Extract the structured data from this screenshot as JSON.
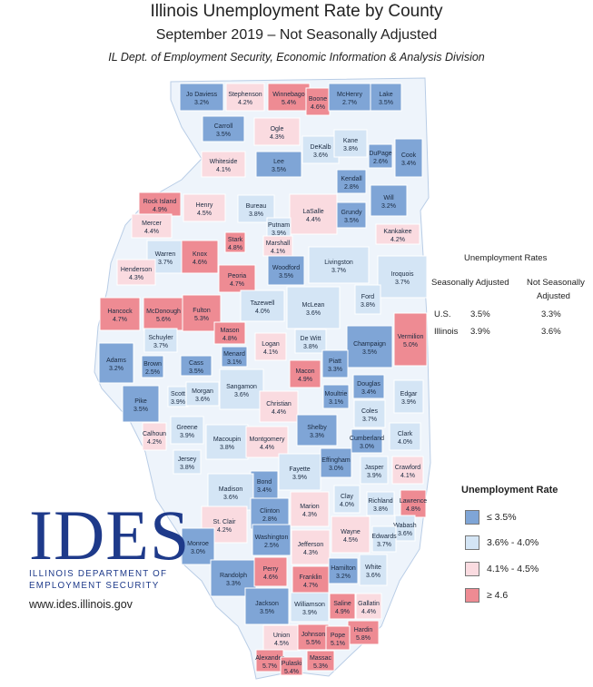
{
  "header": {
    "title": "Illinois Unemployment Rate by County",
    "subtitle": "September 2019 – Not Seasonally Adjusted",
    "source": "IL Dept. of Employment Security, Economic Information & Analysis Division"
  },
  "rates_table": {
    "title": "Unemployment Rates",
    "col_sa": "Seasonally Adjusted",
    "col_nsa_1": "Not Seasonally",
    "col_nsa_2": "Adjusted",
    "rows": [
      {
        "label": "U.S.",
        "sa": "3.5%",
        "nsa": "3.3%"
      },
      {
        "label": "Illinois",
        "sa": "3.9%",
        "nsa": "3.6%"
      }
    ]
  },
  "legend": {
    "title": "Unemployment Rate",
    "items": [
      {
        "label": "≤ 3.5%",
        "color": "#7fa5d6"
      },
      {
        "label": "3.6% - 4.0%",
        "color": "#d4e5f5"
      },
      {
        "label": "4.1% - 4.5%",
        "color": "#fadbe0"
      },
      {
        "label": "≥ 4.6",
        "color": "#ee8b93"
      }
    ]
  },
  "logo": {
    "word": "IDES",
    "org_line1": "ILLINOIS DEPARTMENT OF",
    "org_line2": "EMPLOYMENT SECURITY",
    "url": "www.ides.illinois.gov"
  },
  "counties": [
    {
      "name": "Jo Daviess",
      "rate": "3.2%"
    },
    {
      "name": "Stephenson",
      "rate": "4.2%"
    },
    {
      "name": "Winnebago",
      "rate": "5.4%"
    },
    {
      "name": "Boone",
      "rate": "4.6%"
    },
    {
      "name": "McHenry",
      "rate": "2.7%"
    },
    {
      "name": "Lake",
      "rate": "3.5%"
    },
    {
      "name": "Carroll",
      "rate": "3.5%"
    },
    {
      "name": "Ogle",
      "rate": "4.3%"
    },
    {
      "name": "DeKalb",
      "rate": "3.6%"
    },
    {
      "name": "Kane",
      "rate": "3.8%"
    },
    {
      "name": "DuPage",
      "rate": "2.6%"
    },
    {
      "name": "Cook",
      "rate": "3.4%"
    },
    {
      "name": "Whiteside",
      "rate": "4.1%"
    },
    {
      "name": "Lee",
      "rate": "3.5%"
    },
    {
      "name": "Kendall",
      "rate": "2.8%"
    },
    {
      "name": "Will",
      "rate": "3.2%"
    },
    {
      "name": "Rock Island",
      "rate": "4.9%"
    },
    {
      "name": "Henry",
      "rate": "4.5%"
    },
    {
      "name": "Bureau",
      "rate": "3.8%"
    },
    {
      "name": "LaSalle",
      "rate": "4.4%"
    },
    {
      "name": "Grundy",
      "rate": "3.5%"
    },
    {
      "name": "Putnam",
      "rate": "3.9%"
    },
    {
      "name": "Kankakee",
      "rate": "4.2%"
    },
    {
      "name": "Mercer",
      "rate": "4.4%"
    },
    {
      "name": "Stark",
      "rate": "4.8%"
    },
    {
      "name": "Marshall",
      "rate": "4.1%"
    },
    {
      "name": "Warren",
      "rate": "3.7%"
    },
    {
      "name": "Knox",
      "rate": "4.6%"
    },
    {
      "name": "Livingston",
      "rate": "3.7%"
    },
    {
      "name": "Henderson",
      "rate": "4.3%"
    },
    {
      "name": "Peoria",
      "rate": "4.7%"
    },
    {
      "name": "Woodford",
      "rate": "3.5%"
    },
    {
      "name": "Iroquois",
      "rate": "3.7%"
    },
    {
      "name": "Hancock",
      "rate": "4.7%"
    },
    {
      "name": "McDonough",
      "rate": "5.6%"
    },
    {
      "name": "Fulton",
      "rate": "5.3%"
    },
    {
      "name": "Tazewell",
      "rate": "4.0%"
    },
    {
      "name": "McLean",
      "rate": "3.6%"
    },
    {
      "name": "Ford",
      "rate": "3.8%"
    },
    {
      "name": "Vermilion",
      "rate": "5.0%"
    },
    {
      "name": "Schuyler",
      "rate": "3.7%"
    },
    {
      "name": "Mason",
      "rate": "4.8%"
    },
    {
      "name": "Logan",
      "rate": "4.1%"
    },
    {
      "name": "De Witt",
      "rate": "3.8%"
    },
    {
      "name": "Champaign",
      "rate": "3.5%"
    },
    {
      "name": "Menard",
      "rate": "3.1%"
    },
    {
      "name": "Piatt",
      "rate": "3.3%"
    },
    {
      "name": "Adams",
      "rate": "3.2%"
    },
    {
      "name": "Brown",
      "rate": "2.5%"
    },
    {
      "name": "Cass",
      "rate": "3.5%"
    },
    {
      "name": "Macon",
      "rate": "4.9%"
    },
    {
      "name": "Douglas",
      "rate": "3.4%"
    },
    {
      "name": "Scott",
      "rate": "3.9%"
    },
    {
      "name": "Morgan",
      "rate": "3.6%"
    },
    {
      "name": "Sangamon",
      "rate": "3.6%"
    },
    {
      "name": "Edgar",
      "rate": "3.9%"
    },
    {
      "name": "Pike",
      "rate": "3.5%"
    },
    {
      "name": "Christian",
      "rate": "4.4%"
    },
    {
      "name": "Moultrie",
      "rate": "3.1%"
    },
    {
      "name": "Coles",
      "rate": "3.7%"
    },
    {
      "name": "Calhoun",
      "rate": "4.2%"
    },
    {
      "name": "Greene",
      "rate": "3.9%"
    },
    {
      "name": "Shelby",
      "rate": "3.3%"
    },
    {
      "name": "Clark",
      "rate": "4.0%"
    },
    {
      "name": "Macoupin",
      "rate": "3.8%"
    },
    {
      "name": "Montgomery",
      "rate": "4.4%"
    },
    {
      "name": "Cumberland",
      "rate": "3.0%"
    },
    {
      "name": "Jersey",
      "rate": "3.8%"
    },
    {
      "name": "Fayette",
      "rate": "3.9%"
    },
    {
      "name": "Effingham",
      "rate": "3.0%"
    },
    {
      "name": "Jasper",
      "rate": "3.9%"
    },
    {
      "name": "Crawford",
      "rate": "4.1%"
    },
    {
      "name": "Bond",
      "rate": "3.4%"
    },
    {
      "name": "Madison",
      "rate": "3.6%"
    },
    {
      "name": "Clay",
      "rate": "4.0%"
    },
    {
      "name": "Richland",
      "rate": "3.8%"
    },
    {
      "name": "Lawrence",
      "rate": "4.8%"
    },
    {
      "name": "Marion",
      "rate": "4.3%"
    },
    {
      "name": "Clinton",
      "rate": "2.8%"
    },
    {
      "name": "St. Clair",
      "rate": "4.2%"
    },
    {
      "name": "Wabash",
      "rate": "3.6%"
    },
    {
      "name": "Wayne",
      "rate": "4.5%"
    },
    {
      "name": "Edwards",
      "rate": "3.7%"
    },
    {
      "name": "Washington",
      "rate": "2.5%"
    },
    {
      "name": "Monroe",
      "rate": "3.0%"
    },
    {
      "name": "Jefferson",
      "rate": "4.3%"
    },
    {
      "name": "Randolph",
      "rate": "3.3%"
    },
    {
      "name": "Perry",
      "rate": "4.6%"
    },
    {
      "name": "Franklin",
      "rate": "4.7%"
    },
    {
      "name": "Hamilton",
      "rate": "3.2%"
    },
    {
      "name": "White",
      "rate": "3.6%"
    },
    {
      "name": "Jackson",
      "rate": "3.5%"
    },
    {
      "name": "Williamson",
      "rate": "3.9%"
    },
    {
      "name": "Saline",
      "rate": "4.9%"
    },
    {
      "name": "Gallatin",
      "rate": "4.4%"
    },
    {
      "name": "Hardin",
      "rate": "5.8%"
    },
    {
      "name": "Union",
      "rate": "4.5%"
    },
    {
      "name": "Johnson",
      "rate": "5.5%"
    },
    {
      "name": "Pope",
      "rate": "5.1%"
    },
    {
      "name": "Alexander",
      "rate": "5.7%"
    },
    {
      "name": "Pulaski",
      "rate": "5.4%"
    },
    {
      "name": "Massac",
      "rate": "5.3%"
    }
  ]
}
